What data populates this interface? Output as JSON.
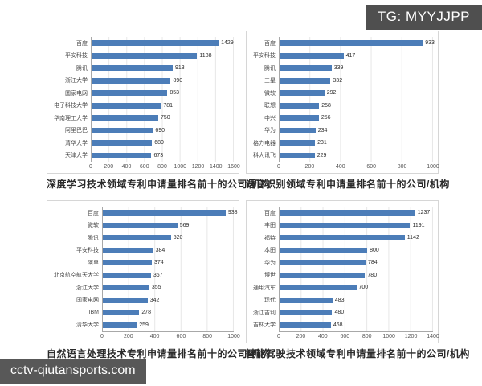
{
  "badge": {
    "text": "TG: MYYJJPP",
    "bg_color": "#4f4f4f"
  },
  "watermark": {
    "text": "cctv-qiutansports.com",
    "bg_color": "#585858"
  },
  "colors": {
    "bar": "#4c7db8",
    "panel_border": "#d6d6d6",
    "gridline": "#e7e7e7",
    "axis_line": "#a8a8a8"
  },
  "chart_data": [
    {
      "type": "bar",
      "orientation": "horizontal",
      "title": "深度学习技术领域专利申请量排名前十的公司/机构",
      "categories": [
        "百度",
        "平安科技",
        "腾讯",
        "浙江大学",
        "国家电网",
        "电子科技大学",
        "华南理工大学",
        "阿里巴巴",
        "清华大学",
        "天津大学"
      ],
      "values": [
        1429,
        1188,
        913,
        890,
        853,
        781,
        750,
        690,
        680,
        673
      ],
      "xticks": [
        0,
        200,
        400,
        600,
        800,
        1000,
        1200,
        1400,
        1600
      ],
      "xlim": [
        0,
        1600
      ],
      "grid": true,
      "legend": false
    },
    {
      "type": "bar",
      "orientation": "horizontal",
      "title": "语音识别领域专利申请量排名前十的公司/机构",
      "categories": [
        "百度",
        "平安科技",
        "腾讯",
        "三星",
        "微软",
        "联想",
        "中兴",
        "华为",
        "格力电器",
        "科大讯飞"
      ],
      "values": [
        933,
        417,
        339,
        332,
        292,
        258,
        256,
        234,
        231,
        229
      ],
      "xticks": [
        0,
        200,
        400,
        600,
        800,
        1000
      ],
      "xlim": [
        0,
        1000
      ],
      "grid": true,
      "legend": false
    },
    {
      "type": "bar",
      "orientation": "horizontal",
      "title": "自然语言处理技术专利申请量排名前十的公司/机构",
      "categories": [
        "百度",
        "微软",
        "腾讯",
        "平安科技",
        "阿里",
        "北京航空航天大学",
        "浙江大学",
        "国家电网",
        "IBM",
        "清华大学"
      ],
      "values": [
        938,
        569,
        520,
        384,
        374,
        367,
        355,
        342,
        278,
        259
      ],
      "xticks": [
        0,
        200,
        400,
        600,
        800,
        1000
      ],
      "xlim": [
        0,
        1000
      ],
      "grid": true,
      "legend": false
    },
    {
      "type": "bar",
      "orientation": "horizontal",
      "title": "智能驾驶技术领域专利申请量排名前十的公司/机构",
      "categories": [
        "百度",
        "丰田",
        "福特",
        "本田",
        "华为",
        "博世",
        "通用汽车",
        "现代",
        "浙江吉利",
        "吉林大学"
      ],
      "values": [
        1237,
        1191,
        1142,
        800,
        784,
        780,
        700,
        483,
        480,
        468
      ],
      "xticks": [
        0,
        200,
        400,
        600,
        800,
        1000,
        1200,
        1400
      ],
      "xlim": [
        0,
        1400
      ],
      "grid": true,
      "legend": false
    }
  ]
}
